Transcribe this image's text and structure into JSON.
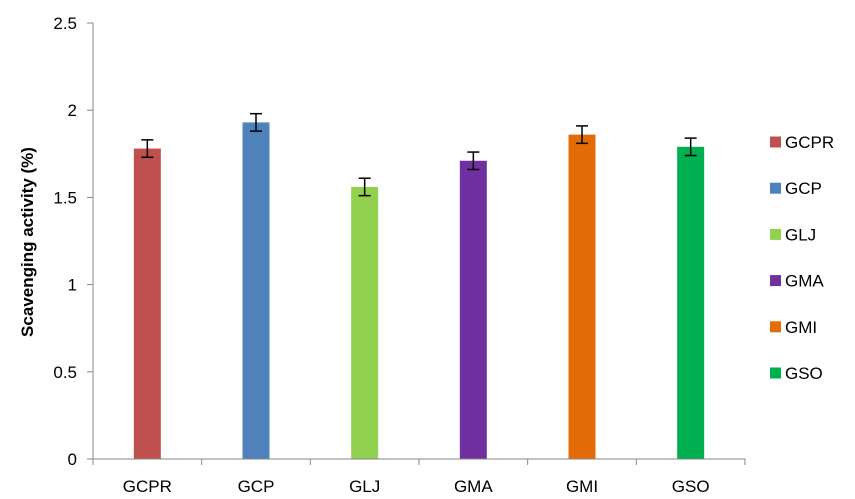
{
  "chart_data": {
    "type": "bar",
    "title": "",
    "xlabel": "",
    "ylabel": "Scavenging activity (%)",
    "ylim": [
      0,
      2.5
    ],
    "yticks": [
      "0",
      "0.5",
      "1",
      "1.5",
      "2",
      "2.5"
    ],
    "ytick_values": [
      0,
      0.5,
      1,
      1.5,
      2,
      2.5
    ],
    "grid": false,
    "legend_position": "right",
    "categories": [
      "GCPR",
      "GCP",
      "GLJ",
      "GMA",
      "GMI",
      "GSO"
    ],
    "values": [
      1.78,
      1.93,
      1.56,
      1.71,
      1.86,
      1.79
    ],
    "errors": [
      0.05,
      0.05,
      0.05,
      0.05,
      0.05,
      0.05
    ],
    "colors": [
      "#c0504d",
      "#4f81bd",
      "#92d050",
      "#7030a0",
      "#e36c09",
      "#00b050"
    ],
    "legend": [
      "GCPR",
      "GCP",
      "GLJ",
      "GMA",
      "GMI",
      "GSO"
    ]
  }
}
